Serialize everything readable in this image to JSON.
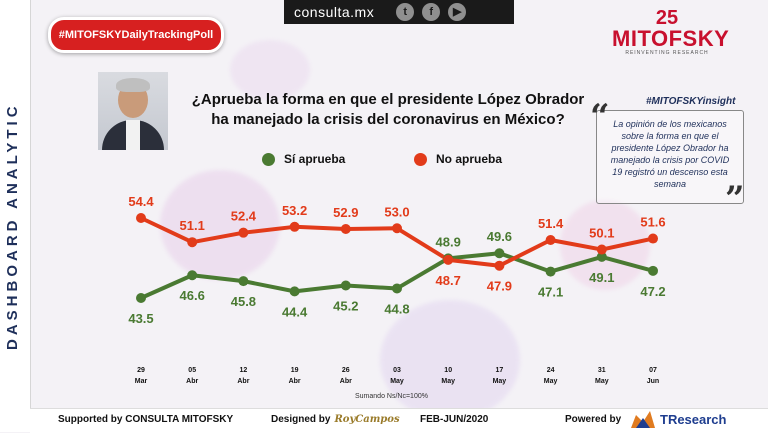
{
  "hashtag": "#MITOFSKYDailyTrackingPoll",
  "site": "consulta.mx",
  "social": [
    "twitter-icon",
    "facebook-icon",
    "youtube-icon"
  ],
  "logo": {
    "number": "25",
    "name": "MITOFSKY",
    "tagline": "REINVENTING RESEARCH"
  },
  "side_label": "DASHBOARD ANALYTIC",
  "question_line1": "¿Aprueba la forma en que el presidente López Obrador",
  "question_line2": "ha manejado la crisis del coronavirus en México?",
  "insight": {
    "tag": "#MITOFSKYinsight",
    "text": "La opinión de los mexicanos sobre la forma en que el presidente López Obrador ha manejado la crisis por COVID 19 registró un descenso esta semana"
  },
  "note": "Sumando Ns/Nc=100%",
  "footer": {
    "supported": "Supported by  CONSULTA  MITOFSKY",
    "designed": "Designed by",
    "designer": "RoyCampos",
    "period": "FEB-JUN/2020",
    "powered": "Powered by",
    "powered_brand": "TResearch"
  },
  "colors": {
    "approve": "#4a7a32",
    "disapprove": "#e23b1a",
    "brand": "#c8102e"
  },
  "chart_data": {
    "type": "line",
    "categories": [
      [
        "29",
        "Mar"
      ],
      [
        "05",
        "Abr"
      ],
      [
        "12",
        "Abr"
      ],
      [
        "19",
        "Abr"
      ],
      [
        "26",
        "Abr"
      ],
      [
        "03",
        "May"
      ],
      [
        "10",
        "May"
      ],
      [
        "17",
        "May"
      ],
      [
        "24",
        "May"
      ],
      [
        "31",
        "May"
      ],
      [
        "07",
        "Jun"
      ]
    ],
    "series": [
      {
        "name": "Sí aprueba",
        "color": "#4a7a32",
        "values": [
          43.5,
          46.6,
          45.8,
          44.4,
          45.2,
          44.8,
          48.9,
          49.6,
          47.1,
          49.1,
          47.2
        ]
      },
      {
        "name": "No aprueba",
        "color": "#e23b1a",
        "values": [
          54.4,
          51.1,
          52.4,
          53.2,
          52.9,
          53.0,
          48.7,
          47.9,
          51.4,
          50.1,
          51.6
        ]
      }
    ],
    "ylim": [
      40,
      58
    ],
    "grid": false,
    "legend": "top"
  }
}
